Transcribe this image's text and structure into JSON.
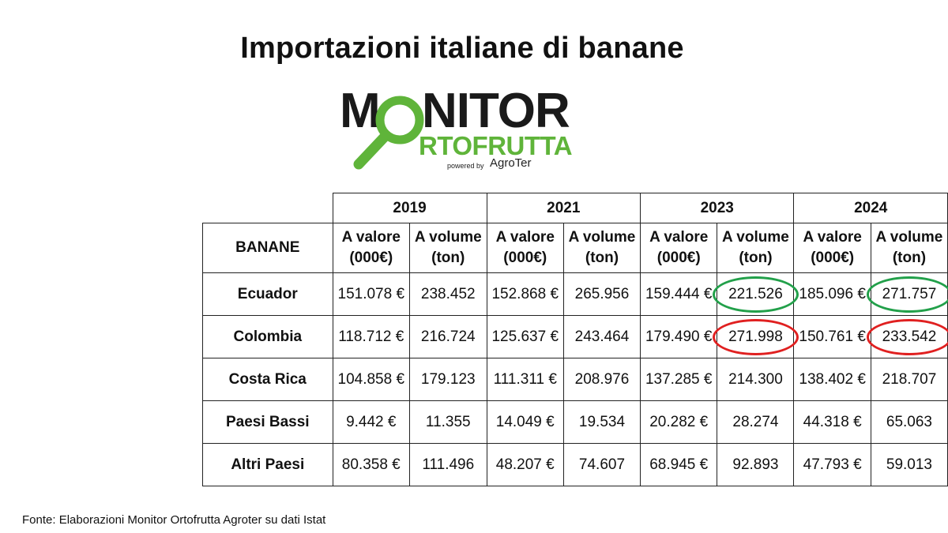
{
  "title": "Importazioni italiane di banane",
  "logo": {
    "line1_first": "M",
    "line1_rest": "NITOR",
    "line2": "RTOFRUTTA",
    "powered": "powered by",
    "brand": "AgroTer",
    "colors": {
      "dark": "#1a1a1a",
      "green": "#5fb43a"
    }
  },
  "source": "Fonte: Elaborazioni Monitor Ortofrutta Agroter su dati Istat",
  "chart_data": {
    "type": "table",
    "row_header": "BANANE",
    "years": [
      "2019",
      "2021",
      "2023",
      "2024"
    ],
    "sub_headers": [
      {
        "line1": "A valore",
        "line2": "(000€)"
      },
      {
        "line1": "A volume",
        "line2": "(ton)"
      }
    ],
    "rows": [
      {
        "name": "Ecuador",
        "values": [
          "151.078 €",
          "238.452",
          "152.868 €",
          "265.956",
          "159.444 €",
          "221.526",
          "185.096 €",
          "271.757"
        ],
        "highlights": {
          "5": "#22a04a",
          "7": "#22a04a"
        }
      },
      {
        "name": "Colombia",
        "values": [
          "118.712 €",
          "216.724",
          "125.637 €",
          "243.464",
          "179.490 €",
          "271.998",
          "150.761 €",
          "233.542"
        ],
        "highlights": {
          "5": "#e02020",
          "7": "#e02020"
        }
      },
      {
        "name": "Costa Rica",
        "values": [
          "104.858 €",
          "179.123",
          "111.311 €",
          "208.976",
          "137.285 €",
          "214.300",
          "138.402 €",
          "218.707"
        ]
      },
      {
        "name": "Paesi Bassi",
        "values": [
          "9.442 €",
          "11.355",
          "14.049 €",
          "19.534",
          "20.282 €",
          "28.274",
          "44.318 €",
          "65.063"
        ]
      },
      {
        "name": "Altri Paesi",
        "values": [
          "80.358 €",
          "111.496",
          "48.207 €",
          "74.607",
          "68.945 €",
          "92.893",
          "47.793 €",
          "59.013"
        ]
      }
    ]
  }
}
